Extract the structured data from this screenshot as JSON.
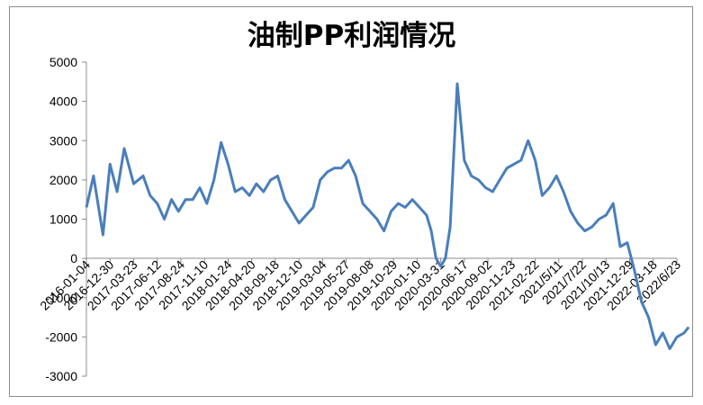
{
  "chart_data": {
    "type": "line",
    "title": "油制PP利润情况",
    "xlabel": "",
    "ylabel": "",
    "ylim": [
      -3000,
      5000
    ],
    "y_ticks": [
      5000,
      4000,
      3000,
      2000,
      1000,
      0,
      -1000,
      -2000,
      -3000
    ],
    "x_tick_labels": [
      "2016-01-04",
      "2016-12-30",
      "2017-03-23",
      "2017-06-12",
      "2017-08-24",
      "2017-11-10",
      "2018-01-24",
      "2018-04-20",
      "2018-09-18",
      "2018-12-10",
      "2019-03-04",
      "2019-05-27",
      "2019-08-08",
      "2019-10-29",
      "2020-01-10",
      "2020-03-31",
      "2020-06-17",
      "2020-09-02",
      "2020-11-23",
      "2021-02-22",
      "2021/5/11",
      "2021/7/22",
      "2021/10/13",
      "2021-12-29",
      "2022-03-18",
      "2022/6/23"
    ],
    "legend": "none",
    "grid": false,
    "series": [
      {
        "color": "#4a7ebb",
        "x": [
          0,
          0.3,
          0.7,
          1,
          1.3,
          1.6,
          2,
          2.4,
          2.7,
          3,
          3.3,
          3.6,
          3.9,
          4.2,
          4.5,
          4.8,
          5.1,
          5.4,
          5.7,
          6,
          6.3,
          6.6,
          6.9,
          7.2,
          7.5,
          7.8,
          8.1,
          8.4,
          8.7,
          9,
          9.3,
          9.6,
          9.9,
          10.2,
          10.5,
          10.8,
          11.1,
          11.4,
          11.7,
          12,
          12.3,
          12.6,
          12.9,
          13.2,
          13.5,
          13.8,
          14.1,
          14.4,
          14.6,
          14.8,
          15,
          15.2,
          15.4,
          15.7,
          16,
          16.3,
          16.6,
          16.9,
          17.2,
          17.5,
          17.8,
          18.1,
          18.4,
          18.7,
          19,
          19.3,
          19.6,
          19.9,
          20.2,
          20.5,
          20.8,
          21.1,
          21.4,
          21.7,
          22,
          22.3,
          22.6,
          22.9,
          23.2,
          23.5,
          23.8,
          24.1,
          24.4,
          24.7,
          25,
          25.3,
          25.5
        ],
        "y": [
          1300,
          2100,
          600,
          2400,
          1700,
          2800,
          1900,
          2100,
          1600,
          1400,
          1000,
          1500,
          1200,
          1500,
          1500,
          1800,
          1400,
          2000,
          2950,
          2400,
          1700,
          1800,
          1600,
          1900,
          1700,
          2000,
          2100,
          1500,
          1200,
          900,
          1100,
          1300,
          2000,
          2200,
          2300,
          2300,
          2500,
          2100,
          1400,
          1200,
          1000,
          700,
          1200,
          1400,
          1300,
          1500,
          1300,
          1100,
          700,
          0,
          -200,
          0,
          800,
          4450,
          2500,
          2100,
          2000,
          1800,
          1700,
          2000,
          2300,
          2400,
          2500,
          3000,
          2500,
          1600,
          1800,
          2100,
          1700,
          1200,
          900,
          700,
          800,
          1000,
          1100,
          1400,
          300,
          400,
          -300,
          -1100,
          -1500,
          -2200,
          -1900,
          -2300,
          -2000,
          -1900,
          -1750
        ]
      }
    ]
  }
}
